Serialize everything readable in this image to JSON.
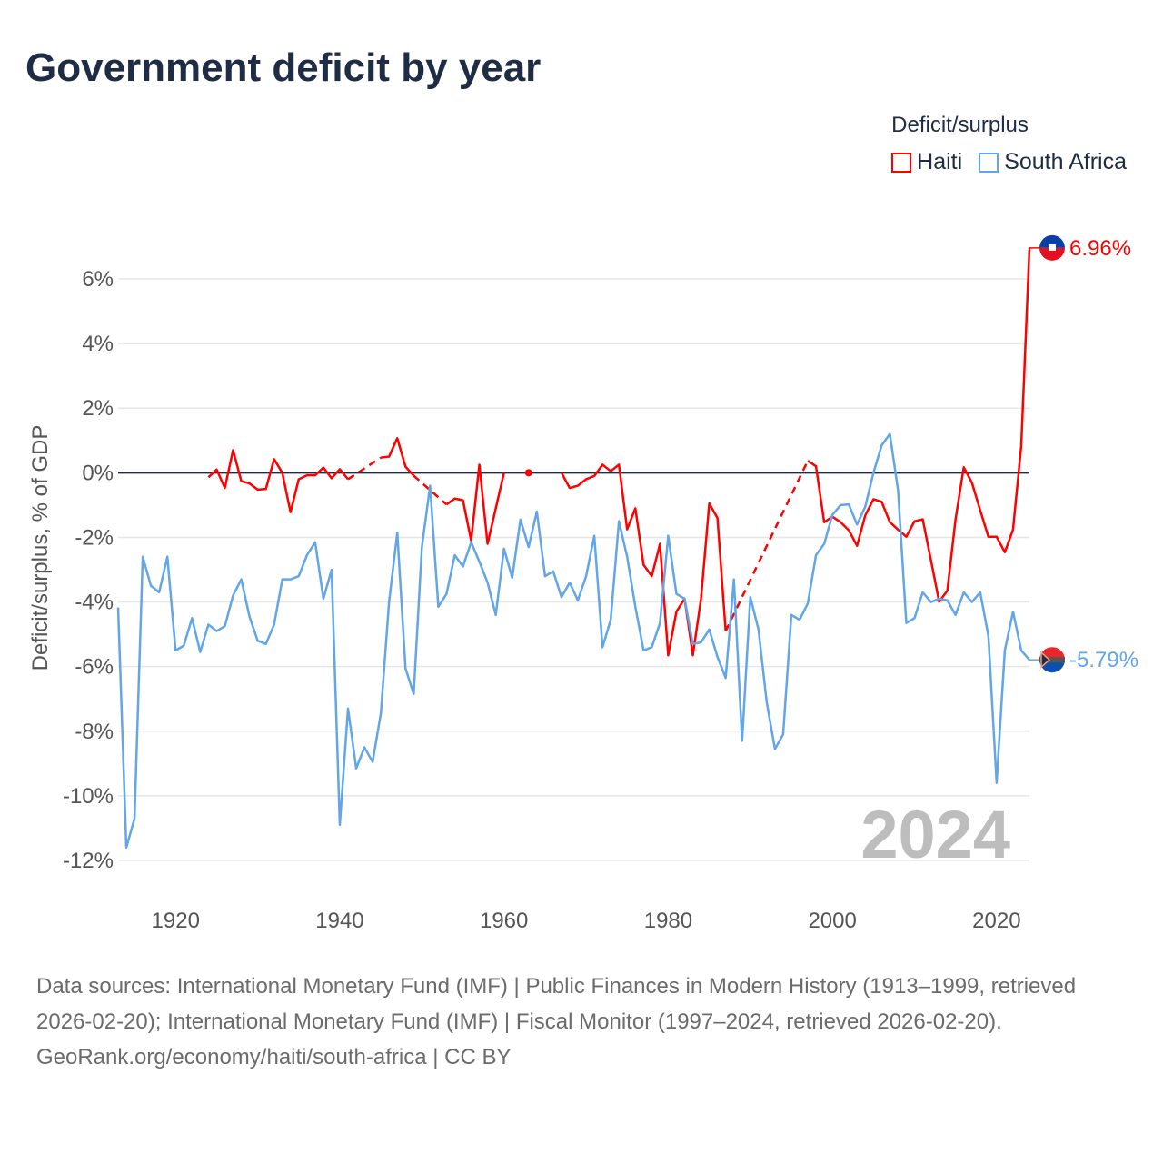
{
  "title": "Government deficit by year",
  "legend": {
    "title": "Deficit/surplus",
    "items": [
      {
        "label": "Haiti",
        "color": "#ff0000"
      },
      {
        "label": "South Africa",
        "color": "#62a6e8"
      }
    ]
  },
  "footer": {
    "sources": "Data sources: International Monetary Fund (IMF) | Public Finances in Modern History (1913–1999, retrieved 2026-02-20); International Monetary Fund (IMF) | Fiscal Monitor (1997–2024, retrieved 2026-02-20).",
    "credit": "GeoRank.org/economy/haiti/south-africa | CC BY"
  },
  "chart_data": {
    "type": "line",
    "title": "Government deficit by year",
    "ylabel": "Deficit/surplus, % of GDP",
    "xlabel": "",
    "xlim": [
      1913,
      2024
    ],
    "ylim": [
      -12,
      6
    ],
    "yticks": [
      6,
      4,
      2,
      0,
      -2,
      -4,
      -6,
      -8,
      -10,
      -12
    ],
    "ytick_labels": [
      "6%",
      "4%",
      "2%",
      "0%",
      "-2%",
      "-4%",
      "-6%",
      "-8%",
      "-10%",
      "-12%"
    ],
    "xticks": [
      1920,
      1940,
      1960,
      1980,
      2000,
      2020
    ],
    "xtick_labels": [
      "1920",
      "1940",
      "1960",
      "1980",
      "2000",
      "2020"
    ],
    "year_label": "2024",
    "grid": true,
    "legend_position": "top-right",
    "series": [
      {
        "name": "Haiti",
        "color": "#ff0000",
        "start_year": 1924,
        "end_label": "6.96%",
        "dashed_connections": [
          [
            1941,
            1945
          ],
          [
            1949,
            1953
          ],
          [
            1987,
            1997
          ]
        ],
        "values": [
          -0.14,
          0.1,
          -0.47,
          0.7,
          -0.26,
          -0.33,
          -0.52,
          -0.5,
          0.42,
          0,
          -1.22,
          -0.2,
          -0.08,
          -0.08,
          0.16,
          -0.17,
          0.11,
          -0.2,
          null,
          null,
          null,
          0.47,
          0.5,
          1.07,
          0.19,
          -0.09,
          null,
          null,
          null,
          -0.98,
          -0.8,
          -0.85,
          -2.1,
          0.25,
          -2.2,
          -1.1,
          0,
          null,
          null,
          0,
          null,
          null,
          null,
          0,
          -0.47,
          -0.4,
          -0.2,
          -0.1,
          0.25,
          0.05,
          0.25,
          -1.75,
          -1.1,
          -2.85,
          -3.2,
          -2.2,
          -5.65,
          -4.3,
          -3.9,
          -5.65,
          -3.9,
          -0.95,
          -1.4,
          -4.9,
          null,
          null,
          null,
          null,
          null,
          null,
          null,
          null,
          null,
          0.37,
          0.2,
          -1.53,
          -1.36,
          -1.53,
          -1.78,
          -2.26,
          -1.32,
          -0.82,
          -0.9,
          -1.53,
          -1.76,
          -1.98,
          -1.5,
          -1.44,
          -2.7,
          -3.99,
          -3.65,
          -1.44,
          0.17,
          -0.31,
          -1.16,
          -1.98,
          -1.98,
          -2.46,
          -1.76,
          0.83,
          6.96
        ]
      },
      {
        "name": "South Africa",
        "color": "#62a6e8",
        "start_year": 1913,
        "end_label": "-5.79%",
        "values": [
          -4.17,
          -11.6,
          -10.7,
          -2.6,
          -3.5,
          -3.7,
          -2.6,
          -5.5,
          -5.35,
          -4.5,
          -5.55,
          -4.7,
          -4.9,
          -4.75,
          -3.8,
          -3.3,
          -4.45,
          -5.2,
          -5.3,
          -4.7,
          -3.3,
          -3.3,
          -3.2,
          -2.55,
          -2.15,
          -3.9,
          -3.0,
          -10.9,
          -7.3,
          -9.15,
          -8.5,
          -8.95,
          -7.45,
          -4.0,
          -1.85,
          -6.05,
          -6.85,
          -2.3,
          -0.4,
          -4.15,
          -3.75,
          -2.55,
          -2.9,
          -2.15,
          -2.75,
          -3.4,
          -4.4,
          -2.35,
          -3.25,
          -1.45,
          -2.3,
          -1.2,
          -3.2,
          -3.05,
          -3.85,
          -3.4,
          -3.95,
          -3.2,
          -1.95,
          -5.4,
          -4.55,
          -1.5,
          -2.6,
          -4.15,
          -5.5,
          -5.4,
          -4.65,
          -1.95,
          -3.75,
          -3.9,
          -5.3,
          -5.25,
          -4.85,
          -5.7,
          -6.35,
          -3.3,
          -8.3,
          -3.85,
          -4.85,
          -7.1,
          -8.55,
          -8.1,
          -4.4,
          -4.55,
          -4.05,
          -2.55,
          -2.2,
          -1.3,
          -1.0,
          -0.98,
          -1.6,
          -1.05,
          0,
          0.85,
          1.2,
          -0.55,
          -4.65,
          -4.5,
          -3.7,
          -4.0,
          -3.9,
          -3.95,
          -4.4,
          -3.7,
          -4.0,
          -3.7,
          -5.05,
          -9.6,
          -5.5,
          -4.3,
          -5.5,
          -5.79
        ]
      }
    ]
  }
}
